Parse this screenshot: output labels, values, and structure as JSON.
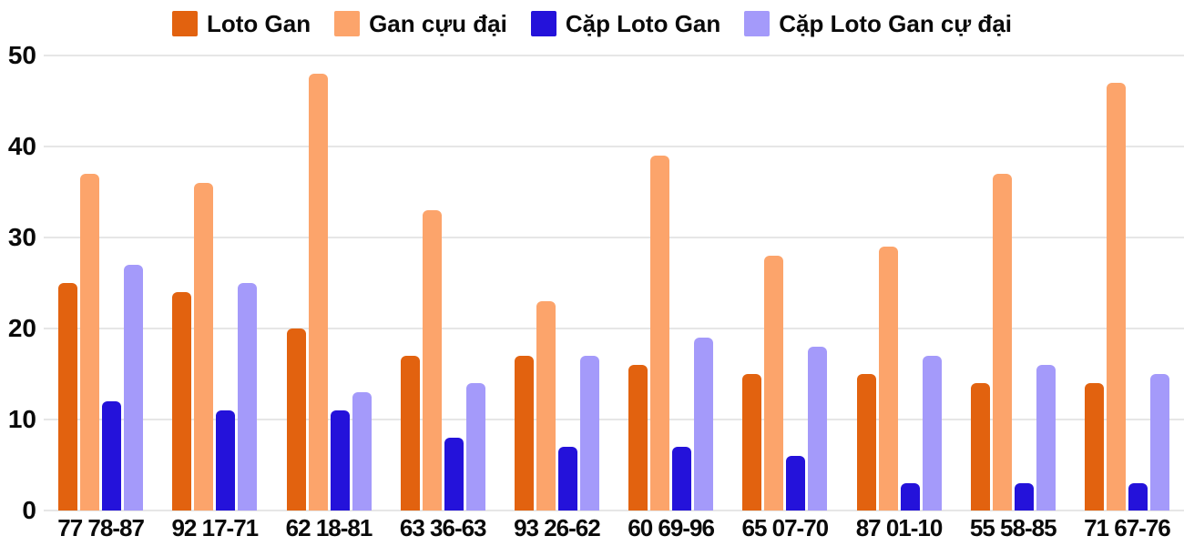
{
  "chart_data": {
    "type": "bar",
    "title": "",
    "xlabel": "",
    "ylabel": "",
    "categories": [
      "77 78-87",
      "92 17-71",
      "62 18-81",
      "63 36-63",
      "93 26-62",
      "60 69-96",
      "65 07-70",
      "87 01-10",
      "55 58-85",
      "71 67-76"
    ],
    "series": [
      {
        "name": "Loto Gan",
        "color": "#e2620f",
        "values": [
          25,
          24,
          20,
          17,
          17,
          16,
          15,
          15,
          14,
          14
        ]
      },
      {
        "name": "Gan cựu đại",
        "color": "#fca46b",
        "values": [
          37,
          36,
          48,
          33,
          23,
          39,
          28,
          29,
          37,
          47
        ]
      },
      {
        "name": "Cặp Loto Gan",
        "color": "#2412da",
        "values": [
          12,
          11,
          11,
          8,
          7,
          7,
          6,
          3,
          3,
          3
        ]
      },
      {
        "name": "Cặp Loto Gan cự đại",
        "color": "#a49afa",
        "values": [
          27,
          25,
          13,
          14,
          17,
          19,
          18,
          17,
          16,
          15
        ]
      }
    ],
    "ylim": [
      0,
      50
    ],
    "yticks": [
      0,
      10,
      20,
      30,
      40,
      50
    ],
    "grid": "horizontal",
    "legend_position": "top-center"
  },
  "colors": {
    "gridline": "#e6e6e6",
    "text": "#0a0a0a",
    "background": "#ffffff"
  }
}
